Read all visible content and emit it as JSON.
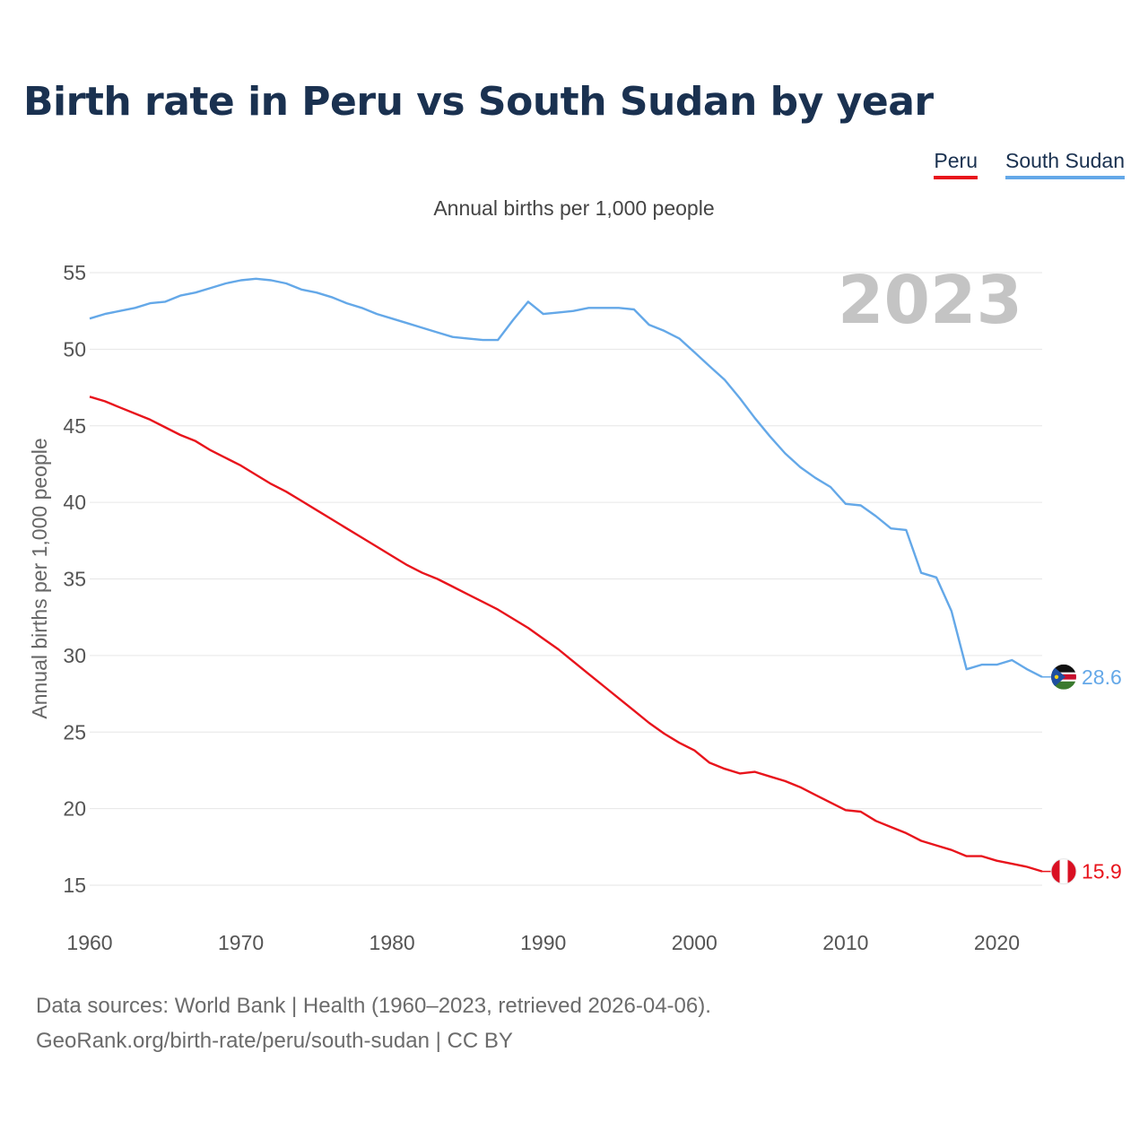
{
  "chart_data": {
    "type": "line",
    "title": "Birth rate in Peru vs South Sudan by year",
    "subtitle": "Annual births per 1,000 people",
    "ylabel": "Annual births per 1,000 people",
    "xlabel": "",
    "xlim": [
      1960,
      2023
    ],
    "ylim": [
      13,
      56
    ],
    "x_ticks": [
      1960,
      1970,
      1980,
      1990,
      2000,
      2010,
      2020
    ],
    "y_ticks": [
      15,
      20,
      25,
      30,
      35,
      40,
      45,
      50,
      55
    ],
    "grid": true,
    "legend_position": "top-right",
    "year_label": "2023",
    "x": [
      1960,
      1961,
      1962,
      1963,
      1964,
      1965,
      1966,
      1967,
      1968,
      1969,
      1970,
      1971,
      1972,
      1973,
      1974,
      1975,
      1976,
      1977,
      1978,
      1979,
      1980,
      1981,
      1982,
      1983,
      1984,
      1985,
      1986,
      1987,
      1988,
      1989,
      1990,
      1991,
      1992,
      1993,
      1994,
      1995,
      1996,
      1997,
      1998,
      1999,
      2000,
      2001,
      2002,
      2003,
      2004,
      2005,
      2006,
      2007,
      2008,
      2009,
      2010,
      2011,
      2012,
      2013,
      2014,
      2015,
      2016,
      2017,
      2018,
      2019,
      2020,
      2021,
      2022,
      2023
    ],
    "series": [
      {
        "name": "Peru",
        "color": "#e8141c",
        "end_label": "15.9",
        "values": [
          46.9,
          46.6,
          46.2,
          45.8,
          45.4,
          44.9,
          44.4,
          44.0,
          43.4,
          42.9,
          42.4,
          41.8,
          41.2,
          40.7,
          40.1,
          39.5,
          38.9,
          38.3,
          37.7,
          37.1,
          36.5,
          35.9,
          35.4,
          35.0,
          34.5,
          34.0,
          33.5,
          33.0,
          32.4,
          31.8,
          31.1,
          30.4,
          29.6,
          28.8,
          28.0,
          27.2,
          26.4,
          25.6,
          24.9,
          24.3,
          23.8,
          23.0,
          22.6,
          22.3,
          22.4,
          22.1,
          21.8,
          21.4,
          20.9,
          20.4,
          19.9,
          19.8,
          19.2,
          18.8,
          18.4,
          17.9,
          17.6,
          17.3,
          16.9,
          16.9,
          16.6,
          16.4,
          16.2,
          15.9
        ]
      },
      {
        "name": "South Sudan",
        "color": "#64a8e8",
        "end_label": "28.6",
        "values": [
          52.0,
          52.3,
          52.5,
          52.7,
          53.0,
          53.1,
          53.5,
          53.7,
          54.0,
          54.3,
          54.5,
          54.6,
          54.5,
          54.3,
          53.9,
          53.7,
          53.4,
          53.0,
          52.7,
          52.3,
          52.0,
          51.7,
          51.4,
          51.1,
          50.8,
          50.7,
          50.6,
          50.6,
          51.9,
          53.1,
          52.3,
          52.4,
          52.5,
          52.7,
          52.7,
          52.7,
          52.6,
          51.6,
          51.2,
          50.7,
          49.8,
          48.9,
          48.0,
          46.8,
          45.5,
          44.3,
          43.2,
          42.3,
          41.6,
          41.0,
          39.9,
          39.8,
          39.1,
          38.3,
          38.2,
          35.4,
          35.1,
          32.9,
          29.1,
          29.4,
          29.4,
          29.7,
          29.1,
          28.6
        ]
      }
    ]
  },
  "footer": {
    "source": "Data sources: World Bank | Health (1960–2023, retrieved 2026-04-06).",
    "credit": "GeoRank.org/birth-rate/peru/south-sudan | CC BY"
  }
}
